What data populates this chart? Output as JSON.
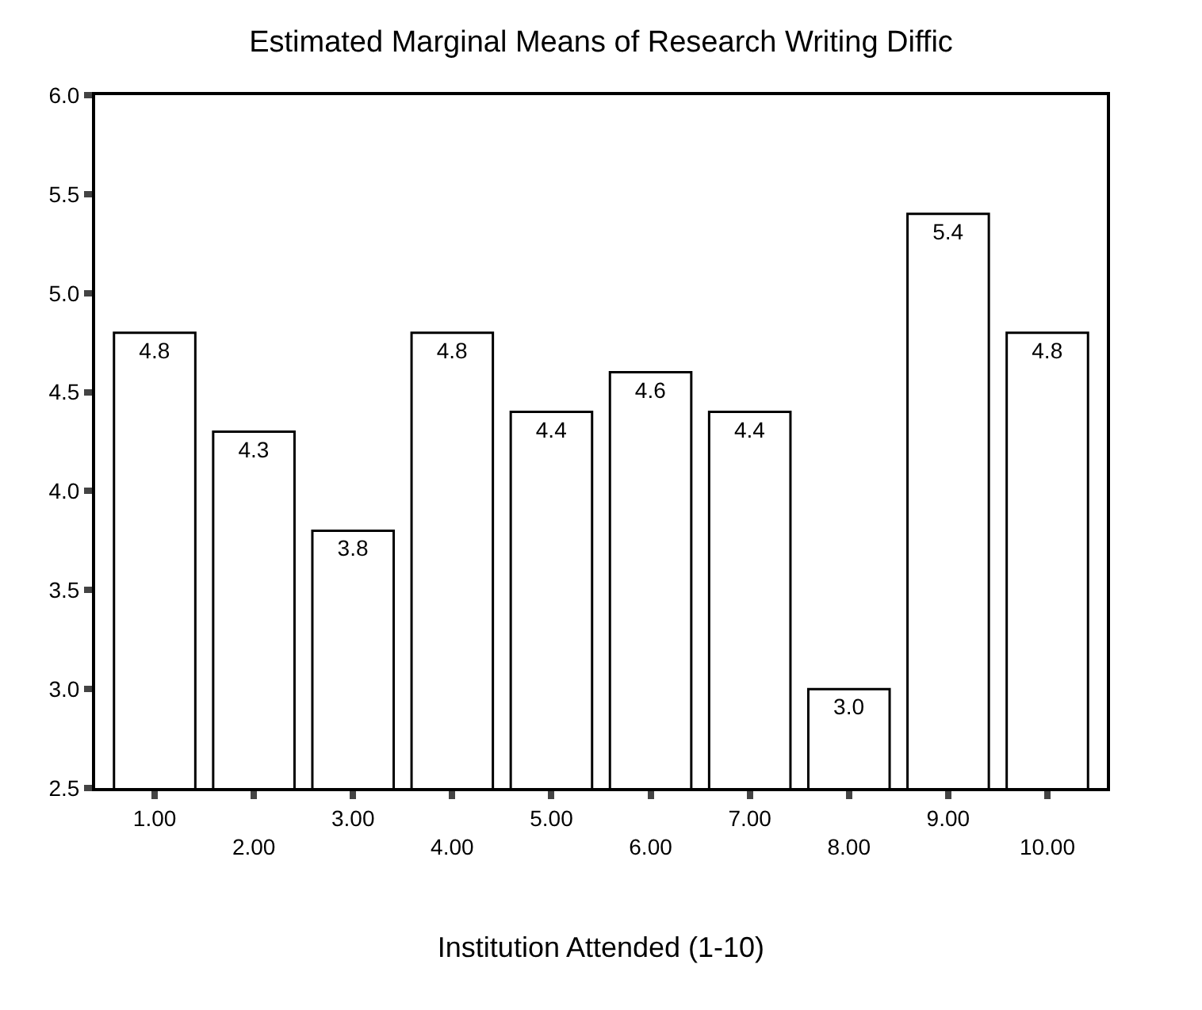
{
  "chart_data": {
    "type": "bar",
    "title": "Estimated Marginal Means of Research Writing Diffic",
    "xlabel": "Institution Attended (1-10)",
    "categories": [
      "1.00",
      "2.00",
      "3.00",
      "4.00",
      "5.00",
      "6.00",
      "7.00",
      "8.00",
      "9.00",
      "10.00"
    ],
    "values": [
      4.8,
      4.3,
      3.8,
      4.8,
      4.4,
      4.6,
      4.4,
      3.0,
      5.4,
      4.8
    ],
    "value_labels": [
      "4.8",
      "4.3",
      "3.8",
      "4.8",
      "4.4",
      "4.6",
      "4.4",
      "3.0",
      "5.4",
      "4.8"
    ],
    "color": "#ffffff",
    "ylim": [
      2.5,
      6.0
    ],
    "yticks": [
      2.5,
      {
        "value": 3,
        "label": "3.0"
      },
      3.5,
      {
        "value": 4,
        "label": "4.0"
      },
      4.5,
      {
        "value": 5,
        "label": "5.0"
      },
      5.5,
      {
        "value": 6,
        "label": "6.0"
      }
    ],
    "grid": false
  }
}
